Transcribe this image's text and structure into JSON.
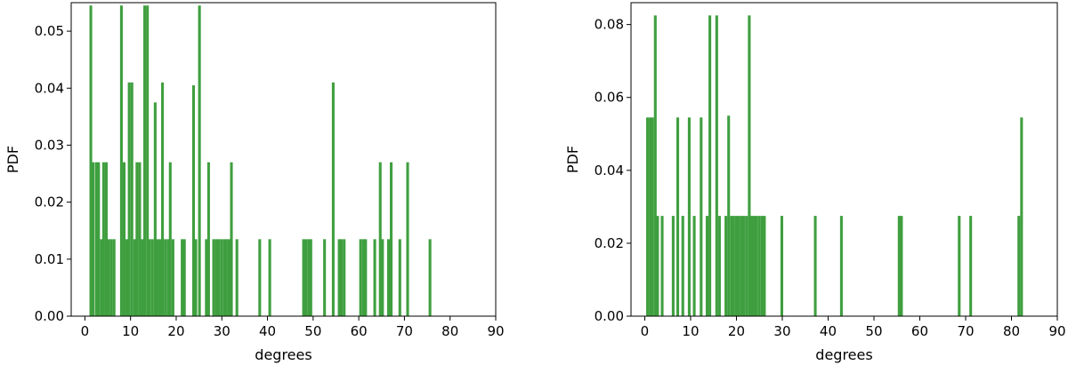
{
  "chart_data": [
    {
      "type": "bar",
      "xlabel": "degrees",
      "ylabel": "PDF",
      "xlim": [
        -3,
        90
      ],
      "ylim": [
        0,
        0.055
      ],
      "xticks": [
        0,
        10,
        20,
        30,
        40,
        50,
        60,
        70,
        80,
        90
      ],
      "xtick_labels": [
        "0",
        "10",
        "20",
        "30",
        "40",
        "50",
        "60",
        "70",
        "80",
        "90"
      ],
      "yticks": [
        0,
        0.01,
        0.02,
        0.03,
        0.04,
        0.05
      ],
      "ytick_labels": [
        "0.00",
        "0.01",
        "0.02",
        "0.03",
        "0.04",
        "0.05"
      ],
      "bar_color": "#3f9f3f",
      "bars": [
        {
          "x": 1.3,
          "y": 0.0545
        },
        {
          "x": 1.8,
          "y": 0.027
        },
        {
          "x": 2.5,
          "y": 0.027
        },
        {
          "x": 3.0,
          "y": 0.027
        },
        {
          "x": 3.6,
          "y": 0.0135
        },
        {
          "x": 4.1,
          "y": 0.027
        },
        {
          "x": 4.7,
          "y": 0.027
        },
        {
          "x": 5.2,
          "y": 0.0135
        },
        {
          "x": 5.8,
          "y": 0.0135
        },
        {
          "x": 6.4,
          "y": 0.0135
        },
        {
          "x": 8.0,
          "y": 0.0545
        },
        {
          "x": 8.6,
          "y": 0.027
        },
        {
          "x": 9.2,
          "y": 0.0135
        },
        {
          "x": 9.7,
          "y": 0.041
        },
        {
          "x": 10.3,
          "y": 0.041
        },
        {
          "x": 10.9,
          "y": 0.0135
        },
        {
          "x": 11.4,
          "y": 0.027
        },
        {
          "x": 12.0,
          "y": 0.027
        },
        {
          "x": 12.6,
          "y": 0.0135
        },
        {
          "x": 13.1,
          "y": 0.0545
        },
        {
          "x": 13.7,
          "y": 0.0545
        },
        {
          "x": 14.2,
          "y": 0.0135
        },
        {
          "x": 14.8,
          "y": 0.0135
        },
        {
          "x": 15.4,
          "y": 0.0375
        },
        {
          "x": 15.9,
          "y": 0.0135
        },
        {
          "x": 16.5,
          "y": 0.0135
        },
        {
          "x": 17.0,
          "y": 0.041
        },
        {
          "x": 17.6,
          "y": 0.0135
        },
        {
          "x": 18.2,
          "y": 0.0135
        },
        {
          "x": 18.7,
          "y": 0.027
        },
        {
          "x": 19.3,
          "y": 0.0135
        },
        {
          "x": 21.3,
          "y": 0.0135
        },
        {
          "x": 21.8,
          "y": 0.0135
        },
        {
          "x": 23.8,
          "y": 0.0405
        },
        {
          "x": 24.3,
          "y": 0.0135
        },
        {
          "x": 25.1,
          "y": 0.0545
        },
        {
          "x": 26.6,
          "y": 0.0135
        },
        {
          "x": 27.1,
          "y": 0.027
        },
        {
          "x": 28.2,
          "y": 0.0135
        },
        {
          "x": 28.8,
          "y": 0.0135
        },
        {
          "x": 29.3,
          "y": 0.0135
        },
        {
          "x": 29.9,
          "y": 0.0135
        },
        {
          "x": 30.5,
          "y": 0.0135
        },
        {
          "x": 31.0,
          "y": 0.0135
        },
        {
          "x": 31.6,
          "y": 0.0135
        },
        {
          "x": 32.1,
          "y": 0.027
        },
        {
          "x": 33.3,
          "y": 0.0135
        },
        {
          "x": 38.3,
          "y": 0.0135
        },
        {
          "x": 40.5,
          "y": 0.0135
        },
        {
          "x": 47.9,
          "y": 0.0135
        },
        {
          "x": 48.4,
          "y": 0.0135
        },
        {
          "x": 49.0,
          "y": 0.0135
        },
        {
          "x": 49.5,
          "y": 0.0135
        },
        {
          "x": 52.5,
          "y": 0.0135
        },
        {
          "x": 54.4,
          "y": 0.041
        },
        {
          "x": 55.7,
          "y": 0.0135
        },
        {
          "x": 56.2,
          "y": 0.0135
        },
        {
          "x": 56.8,
          "y": 0.0135
        },
        {
          "x": 60.4,
          "y": 0.0135
        },
        {
          "x": 61.0,
          "y": 0.0135
        },
        {
          "x": 61.5,
          "y": 0.0135
        },
        {
          "x": 63.5,
          "y": 0.0135
        },
        {
          "x": 64.7,
          "y": 0.027
        },
        {
          "x": 65.2,
          "y": 0.0135
        },
        {
          "x": 66.5,
          "y": 0.0135
        },
        {
          "x": 67.1,
          "y": 0.027
        },
        {
          "x": 69.0,
          "y": 0.0135
        },
        {
          "x": 70.7,
          "y": 0.027
        },
        {
          "x": 75.6,
          "y": 0.0135
        }
      ]
    },
    {
      "type": "bar",
      "xlabel": "degrees",
      "ylabel": "PDF",
      "xlim": [
        -3,
        90
      ],
      "ylim": [
        0,
        0.086
      ],
      "xticks": [
        0,
        10,
        20,
        30,
        40,
        50,
        60,
        70,
        80,
        90
      ],
      "xtick_labels": [
        "0",
        "10",
        "20",
        "30",
        "40",
        "50",
        "60",
        "70",
        "80",
        "90"
      ],
      "yticks": [
        0,
        0.02,
        0.04,
        0.06,
        0.08
      ],
      "ytick_labels": [
        "0.00",
        "0.02",
        "0.04",
        "0.06",
        "0.08"
      ],
      "bar_color": "#3f9f3f",
      "bars": [
        {
          "x": 0.6,
          "y": 0.0545
        },
        {
          "x": 1.2,
          "y": 0.0545
        },
        {
          "x": 1.7,
          "y": 0.0545
        },
        {
          "x": 2.3,
          "y": 0.0825
        },
        {
          "x": 2.8,
          "y": 0.0275
        },
        {
          "x": 3.8,
          "y": 0.0275
        },
        {
          "x": 6.2,
          "y": 0.0275
        },
        {
          "x": 7.2,
          "y": 0.0545
        },
        {
          "x": 8.3,
          "y": 0.0275
        },
        {
          "x": 9.7,
          "y": 0.0545
        },
        {
          "x": 10.8,
          "y": 0.0275
        },
        {
          "x": 12.3,
          "y": 0.0545
        },
        {
          "x": 13.6,
          "y": 0.0275
        },
        {
          "x": 14.2,
          "y": 0.0825
        },
        {
          "x": 15.7,
          "y": 0.0825
        },
        {
          "x": 16.3,
          "y": 0.0275
        },
        {
          "x": 17.7,
          "y": 0.0275
        },
        {
          "x": 18.3,
          "y": 0.055
        },
        {
          "x": 18.9,
          "y": 0.0275
        },
        {
          "x": 19.4,
          "y": 0.0275
        },
        {
          "x": 20.0,
          "y": 0.0275
        },
        {
          "x": 20.5,
          "y": 0.0275
        },
        {
          "x": 21.1,
          "y": 0.0275
        },
        {
          "x": 21.6,
          "y": 0.0275
        },
        {
          "x": 22.2,
          "y": 0.0275
        },
        {
          "x": 22.8,
          "y": 0.0825
        },
        {
          "x": 23.3,
          "y": 0.0275
        },
        {
          "x": 23.9,
          "y": 0.0275
        },
        {
          "x": 24.4,
          "y": 0.0275
        },
        {
          "x": 25.0,
          "y": 0.0275
        },
        {
          "x": 25.6,
          "y": 0.0275
        },
        {
          "x": 26.1,
          "y": 0.0275
        },
        {
          "x": 29.9,
          "y": 0.0275
        },
        {
          "x": 37.2,
          "y": 0.0275
        },
        {
          "x": 42.9,
          "y": 0.0275
        },
        {
          "x": 55.5,
          "y": 0.0275
        },
        {
          "x": 56.0,
          "y": 0.0275
        },
        {
          "x": 68.6,
          "y": 0.0275
        },
        {
          "x": 71.1,
          "y": 0.0275
        },
        {
          "x": 81.6,
          "y": 0.0275
        },
        {
          "x": 82.2,
          "y": 0.0545
        }
      ]
    }
  ]
}
